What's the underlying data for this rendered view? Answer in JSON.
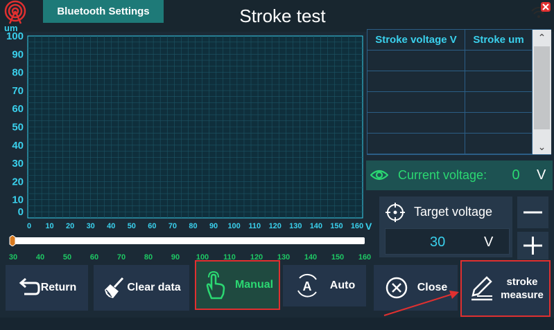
{
  "header": {
    "bluetooth_tab": "Bluetooth Settings",
    "title": "Stroke test"
  },
  "chart_data": {
    "type": "line",
    "ylabel": "um",
    "xlabel": "V",
    "ylim": [
      0,
      100
    ],
    "xlim": [
      0,
      160
    ],
    "yticks": [
      "0",
      "10",
      "20",
      "30",
      "40",
      "50",
      "60",
      "70",
      "80",
      "90",
      "100"
    ],
    "xticks": [
      "0",
      "10",
      "20",
      "30",
      "40",
      "50",
      "60",
      "70",
      "80",
      "90",
      "100",
      "110",
      "120",
      "130",
      "140",
      "150",
      "160"
    ],
    "series": [],
    "grid": true
  },
  "slider": {
    "value": 30,
    "min": 30,
    "max": 160,
    "labels": [
      "30",
      "40",
      "50",
      "60",
      "70",
      "80",
      "90",
      "100",
      "110",
      "120",
      "130",
      "140",
      "150",
      "160"
    ]
  },
  "table": {
    "headers": [
      "Stroke voltage  V",
      "Stroke um"
    ],
    "rows": [
      [
        "",
        ""
      ],
      [
        "",
        ""
      ],
      [
        "",
        ""
      ],
      [
        "",
        ""
      ],
      [
        "",
        ""
      ]
    ]
  },
  "current_voltage": {
    "label": "Current voltage:",
    "value": "0",
    "unit": "V"
  },
  "target_voltage": {
    "label": "Target voltage",
    "value": "30",
    "unit": "V"
  },
  "buttons": {
    "return": "Return",
    "clear": "Clear data",
    "manual": "Manual",
    "auto": "Auto",
    "close": "Close",
    "stroke_line1": "stroke",
    "stroke_line2": "measure"
  },
  "colors": {
    "accent_green": "#2bd872",
    "accent_cyan": "#3ad0ec",
    "highlight_red": "#e03030",
    "tab_teal": "#1e7a78"
  },
  "icons": {
    "bluetooth": "antenna-icon",
    "wifi_close": "wifi-off-close-icon",
    "eye": "eye-icon",
    "target": "crosshair-icon",
    "return": "return-arrow-icon",
    "clear": "broom-icon",
    "manual": "hand-pointer-icon",
    "auto": "auto-a-icon",
    "close": "circle-x-icon",
    "stroke": "pen-icon"
  }
}
